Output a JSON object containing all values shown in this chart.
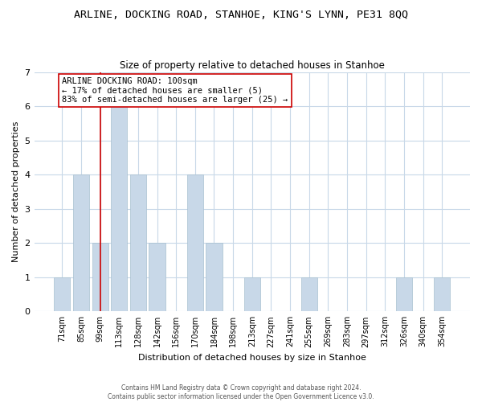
{
  "title": "ARLINE, DOCKING ROAD, STANHOE, KING'S LYNN, PE31 8QQ",
  "subtitle": "Size of property relative to detached houses in Stanhoe",
  "xlabel": "Distribution of detached houses by size in Stanhoe",
  "ylabel": "Number of detached properties",
  "bar_color": "#c8d8e8",
  "bar_edge_color": "#a8c0d0",
  "background_color": "#ffffff",
  "grid_color": "#c8d8e8",
  "annotation_line_color": "#cc0000",
  "categories": [
    "71sqm",
    "85sqm",
    "99sqm",
    "113sqm",
    "128sqm",
    "142sqm",
    "156sqm",
    "170sqm",
    "184sqm",
    "198sqm",
    "213sqm",
    "227sqm",
    "241sqm",
    "255sqm",
    "269sqm",
    "283sqm",
    "297sqm",
    "312sqm",
    "326sqm",
    "340sqm",
    "354sqm"
  ],
  "values": [
    1,
    4,
    2,
    6,
    4,
    2,
    0,
    4,
    2,
    0,
    1,
    0,
    0,
    1,
    0,
    0,
    0,
    0,
    1,
    0,
    1
  ],
  "ylim": [
    0,
    7
  ],
  "yticks": [
    0,
    1,
    2,
    3,
    4,
    5,
    6,
    7
  ],
  "annotation_text_line1": "ARLINE DOCKING ROAD: 100sqm",
  "annotation_text_line2": "← 17% of detached houses are smaller (5)",
  "annotation_text_line3": "83% of semi-detached houses are larger (25) →",
  "annotation_bar_index": 2,
  "footer_line1": "Contains HM Land Registry data © Crown copyright and database right 2024.",
  "footer_line2": "Contains public sector information licensed under the Open Government Licence v3.0."
}
